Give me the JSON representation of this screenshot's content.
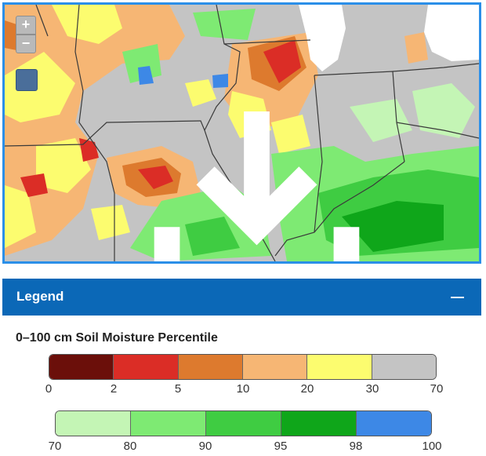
{
  "map": {
    "controls": {
      "zoom_in_label": "+",
      "zoom_out_label": "−"
    }
  },
  "legend": {
    "title": "Legend",
    "collapse_label": "",
    "heading": "0–100 cm Soil Moisture Percentile",
    "scale1": {
      "colors": [
        "#6b0f0a",
        "#db2d26",
        "#dd7a2e",
        "#f6b674",
        "#fcfc6f",
        "#c4c4c4"
      ],
      "ticks": [
        "0",
        "2",
        "5",
        "10",
        "20",
        "30",
        "70"
      ]
    },
    "scale2": {
      "colors": [
        "#c4f5b5",
        "#7eea73",
        "#3fcc42",
        "#0fa61a",
        "#3d88e6"
      ],
      "ticks": [
        "70",
        "80",
        "90",
        "95",
        "98",
        "100"
      ]
    }
  }
}
